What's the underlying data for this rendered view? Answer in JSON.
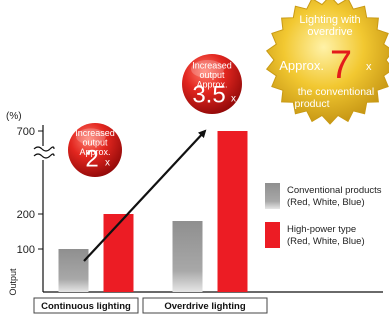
{
  "chart_data": {
    "type": "bar",
    "title": "",
    "ylabel": "Output",
    "y_unit": "(%)",
    "yticks": [
      "100",
      "200",
      "700"
    ],
    "axis_break": "between 200 and 700",
    "groups": [
      "Continuous lighting",
      "Overdrive lighting"
    ],
    "series": [
      {
        "name": "Conventional products (Red, White, Blue)",
        "color": "#8c8c8c",
        "values": [
          100,
          180
        ]
      },
      {
        "name": "High-power type (Red, White, Blue)",
        "color": "#ec1c24",
        "values": [
          200,
          700
        ]
      }
    ],
    "legend_position": "right",
    "annotations": [
      {
        "target": "Continuous lighting",
        "lines": [
          "Increased",
          "output",
          "Approx."
        ],
        "value": "2",
        "suffix": "x",
        "color": "#d62020"
      },
      {
        "target": "Overdrive lighting",
        "lines": [
          "Increased",
          "output",
          "Approx."
        ],
        "value": "3.5",
        "suffix": "x",
        "color": "#d62020"
      }
    ],
    "badge": {
      "lines_top": [
        "Lighting with",
        "overdrive"
      ],
      "prefix": "Approx.",
      "value": "7",
      "suffix": "x",
      "lines_bottom": [
        "the conventional",
        "product"
      ],
      "color": "#e3b21b"
    }
  }
}
